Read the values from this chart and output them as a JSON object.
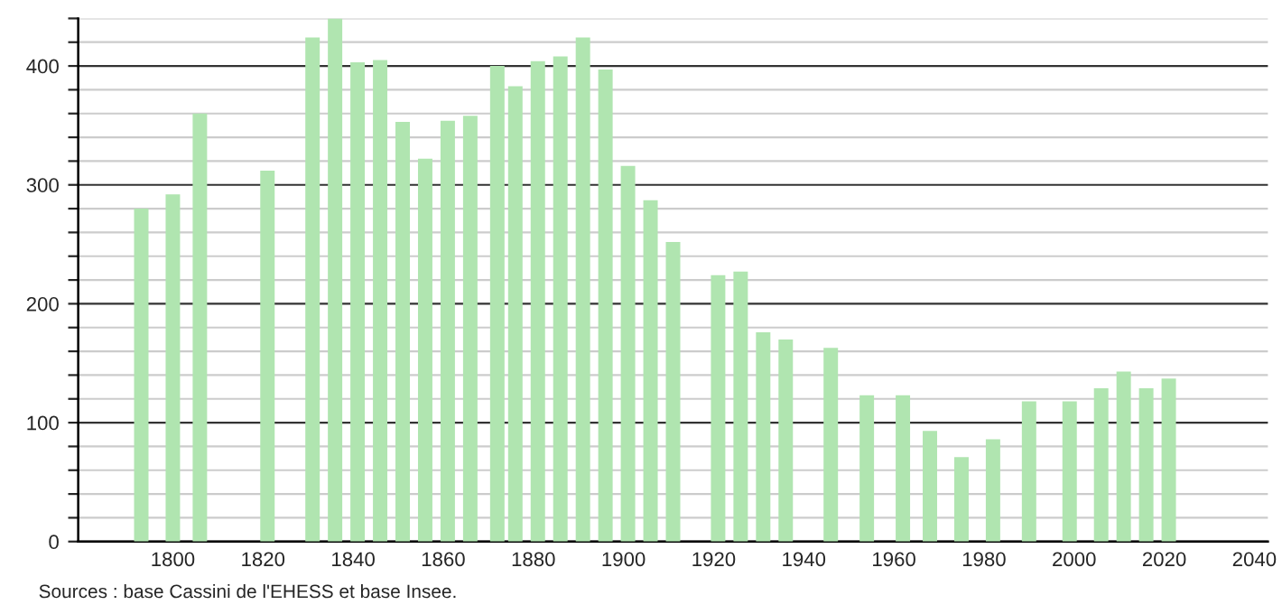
{
  "chart_data": {
    "type": "bar",
    "x": [
      1793,
      1800,
      1806,
      1821,
      1831,
      1836,
      1841,
      1846,
      1851,
      1856,
      1861,
      1866,
      1872,
      1876,
      1881,
      1886,
      1891,
      1896,
      1901,
      1906,
      1911,
      1921,
      1926,
      1931,
      1936,
      1946,
      1954,
      1962,
      1968,
      1975,
      1982,
      1990,
      1999,
      2006,
      2011,
      2016,
      2021
    ],
    "values": [
      280,
      292,
      360,
      312,
      424,
      440,
      403,
      405,
      353,
      322,
      354,
      358,
      400,
      383,
      404,
      408,
      424,
      397,
      316,
      287,
      252,
      224,
      227,
      176,
      170,
      163,
      123,
      123,
      93,
      71,
      86,
      118,
      118,
      129,
      143,
      129,
      137
    ],
    "color": "#b0e5b0",
    "xlim": [
      1779,
      2043
    ],
    "ylim": [
      0,
      440
    ],
    "xticks": [
      1800,
      1820,
      1840,
      1860,
      1880,
      1900,
      1920,
      1940,
      1960,
      1980,
      2000,
      2020,
      2040
    ],
    "yticks": [
      0,
      {
        "value": 20,
        "label": null
      },
      {
        "value": 40,
        "label": null
      },
      {
        "value": 60,
        "label": null
      },
      {
        "value": 80,
        "label": null
      },
      100,
      {
        "value": 120,
        "label": null
      },
      {
        "value": 140,
        "label": null
      },
      {
        "value": 160,
        "label": null
      },
      {
        "value": 180,
        "label": null
      },
      200,
      {
        "value": 220,
        "label": null
      },
      {
        "value": 240,
        "label": null
      },
      {
        "value": 260,
        "label": null
      },
      {
        "value": 280,
        "label": null
      },
      300,
      {
        "value": 320,
        "label": null
      },
      {
        "value": 340,
        "label": null
      },
      {
        "value": 360,
        "label": null
      },
      {
        "value": 380,
        "label": null
      },
      400,
      {
        "value": 420,
        "label": null
      },
      {
        "value": 440,
        "label": null
      }
    ],
    "grid": "y",
    "annotations": [
      "Sources : base Cassini de l'EHESS et base Insee."
    ]
  }
}
